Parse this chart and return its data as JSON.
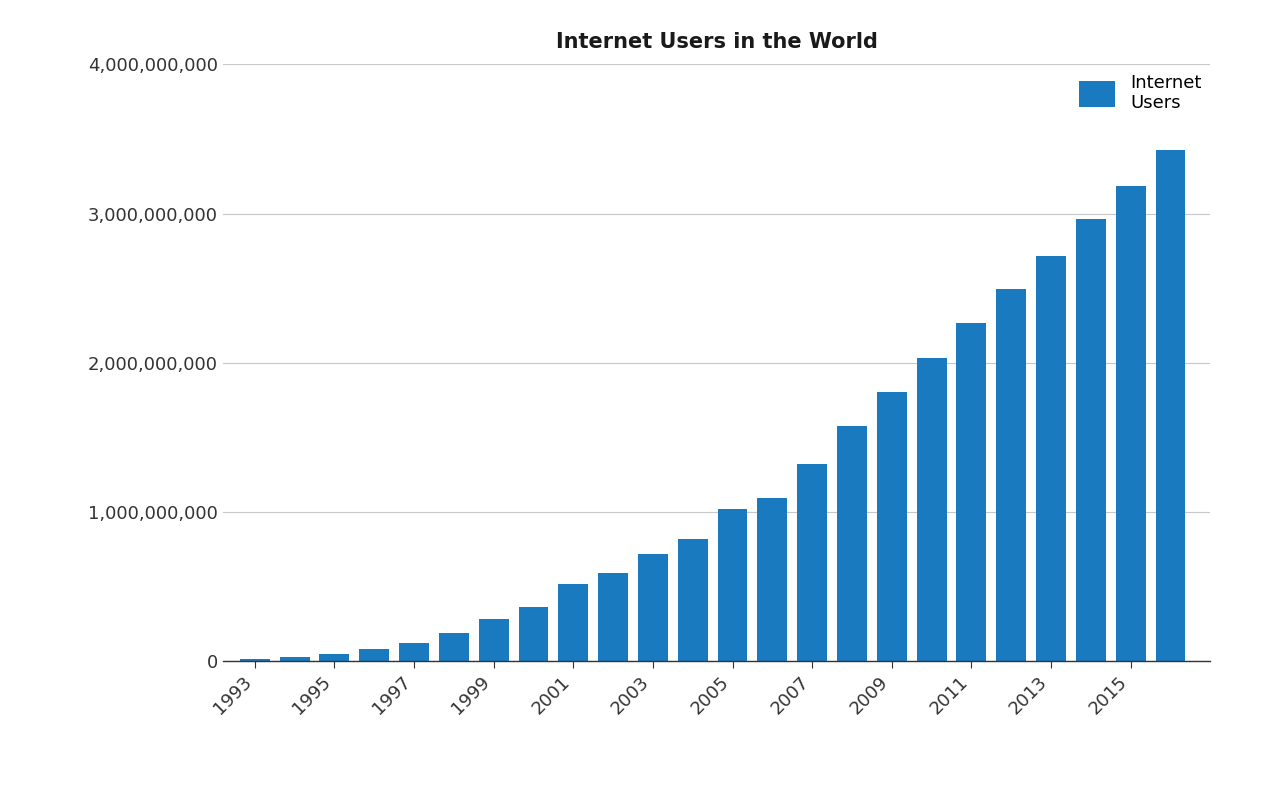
{
  "title": "Internet Users in the World",
  "bar_color": "#1a7abf",
  "legend_label": "Internet\nUsers",
  "background_color": "#ffffff",
  "years": [
    1993,
    1994,
    1995,
    1996,
    1997,
    1998,
    1999,
    2000,
    2001,
    2002,
    2003,
    2004,
    2005,
    2006,
    2007,
    2008,
    2009,
    2010,
    2011,
    2012,
    2013,
    2014,
    2015,
    2016
  ],
  "values": [
    14000000,
    25000000,
    45000000,
    77000000,
    120000000,
    188000000,
    280000000,
    361000000,
    513000000,
    587000000,
    719000000,
    817000000,
    1018000000,
    1093000000,
    1319000000,
    1574000000,
    1802000000,
    2034000000,
    2267000000,
    2497000000,
    2718000000,
    2966000000,
    3185000000,
    3424000000
  ],
  "ylim": [
    0,
    4000000000
  ],
  "yticks": [
    0,
    1000000000,
    2000000000,
    3000000000,
    4000000000
  ],
  "ytick_labels": [
    "0",
    "1,000,000,000",
    "2,000,000,000",
    "3,000,000,000",
    "4,000,000,000"
  ],
  "xtick_positions": [
    1993,
    1995,
    1997,
    1999,
    2001,
    2003,
    2005,
    2007,
    2009,
    2011,
    2013,
    2015
  ],
  "xtick_labels": [
    "1993",
    "1995",
    "1997",
    "1999",
    "2001",
    "2003",
    "2005",
    "2007",
    "2009",
    "2011",
    "2013",
    "2015"
  ],
  "grid_color": "#c8c8c8",
  "title_fontsize": 15,
  "tick_fontsize": 13,
  "legend_fontsize": 13,
  "bar_width": 0.75
}
